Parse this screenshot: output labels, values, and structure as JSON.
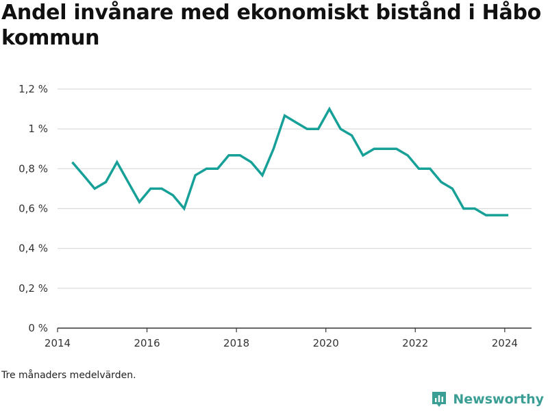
{
  "chart_data": {
    "type": "line",
    "title": "Andel invånare med ekonomiskt bistånd i Håbo kommun",
    "xlabel": "",
    "ylabel": "",
    "ylim": [
      0,
      1.2
    ],
    "xlim": [
      2014,
      2024.6
    ],
    "grid": true,
    "legend": "none",
    "line_color": "#17a097",
    "y_ticks": [
      {
        "value": 0,
        "label": "0 %"
      },
      {
        "value": 0.2,
        "label": "0,2 %"
      },
      {
        "value": 0.4,
        "label": "0,4 %"
      },
      {
        "value": 0.6,
        "label": "0,6 %"
      },
      {
        "value": 0.8,
        "label": "0,8 %"
      },
      {
        "value": 1.0,
        "label": "1 %"
      },
      {
        "value": 1.2,
        "label": "1,2 %"
      }
    ],
    "x_ticks": [
      {
        "value": 2014,
        "label": "2014"
      },
      {
        "value": 2016,
        "label": "2016"
      },
      {
        "value": 2018,
        "label": "2018"
      },
      {
        "value": 2020,
        "label": "2020"
      },
      {
        "value": 2022,
        "label": "2022"
      },
      {
        "value": 2024,
        "label": "2024"
      }
    ],
    "series": [
      {
        "points": [
          {
            "x": 2014.33,
            "y": 0.833
          },
          {
            "x": 2014.58,
            "y": 0.767
          },
          {
            "x": 2014.83,
            "y": 0.7
          },
          {
            "x": 2015.08,
            "y": 0.733
          },
          {
            "x": 2015.33,
            "y": 0.833
          },
          {
            "x": 2015.58,
            "y": 0.733
          },
          {
            "x": 2015.83,
            "y": 0.633
          },
          {
            "x": 2016.08,
            "y": 0.7
          },
          {
            "x": 2016.33,
            "y": 0.7
          },
          {
            "x": 2016.58,
            "y": 0.667
          },
          {
            "x": 2016.83,
            "y": 0.6
          },
          {
            "x": 2017.08,
            "y": 0.767
          },
          {
            "x": 2017.33,
            "y": 0.8
          },
          {
            "x": 2017.58,
            "y": 0.8
          },
          {
            "x": 2017.83,
            "y": 0.867
          },
          {
            "x": 2018.08,
            "y": 0.867
          },
          {
            "x": 2018.33,
            "y": 0.833
          },
          {
            "x": 2018.58,
            "y": 0.767
          },
          {
            "x": 2018.83,
            "y": 0.9
          },
          {
            "x": 2019.08,
            "y": 1.067
          },
          {
            "x": 2019.33,
            "y": 1.033
          },
          {
            "x": 2019.58,
            "y": 1.0
          },
          {
            "x": 2019.83,
            "y": 1.0
          },
          {
            "x": 2020.08,
            "y": 1.1
          },
          {
            "x": 2020.33,
            "y": 1.0
          },
          {
            "x": 2020.58,
            "y": 0.967
          },
          {
            "x": 2020.83,
            "y": 0.867
          },
          {
            "x": 2021.08,
            "y": 0.9
          },
          {
            "x": 2021.33,
            "y": 0.9
          },
          {
            "x": 2021.58,
            "y": 0.9
          },
          {
            "x": 2021.83,
            "y": 0.867
          },
          {
            "x": 2022.08,
            "y": 0.8
          },
          {
            "x": 2022.33,
            "y": 0.8
          },
          {
            "x": 2022.58,
            "y": 0.733
          },
          {
            "x": 2022.83,
            "y": 0.7
          },
          {
            "x": 2023.08,
            "y": 0.6
          },
          {
            "x": 2023.33,
            "y": 0.6
          },
          {
            "x": 2023.58,
            "y": 0.567
          },
          {
            "x": 2023.83,
            "y": 0.567
          },
          {
            "x": 2024.08,
            "y": 0.567
          }
        ]
      }
    ]
  },
  "footnote": "Tre månaders medelvärden.",
  "brand": {
    "name": "Newsworthy",
    "color": "#3a9e95",
    "icon": "newsworthy-logo-icon"
  }
}
